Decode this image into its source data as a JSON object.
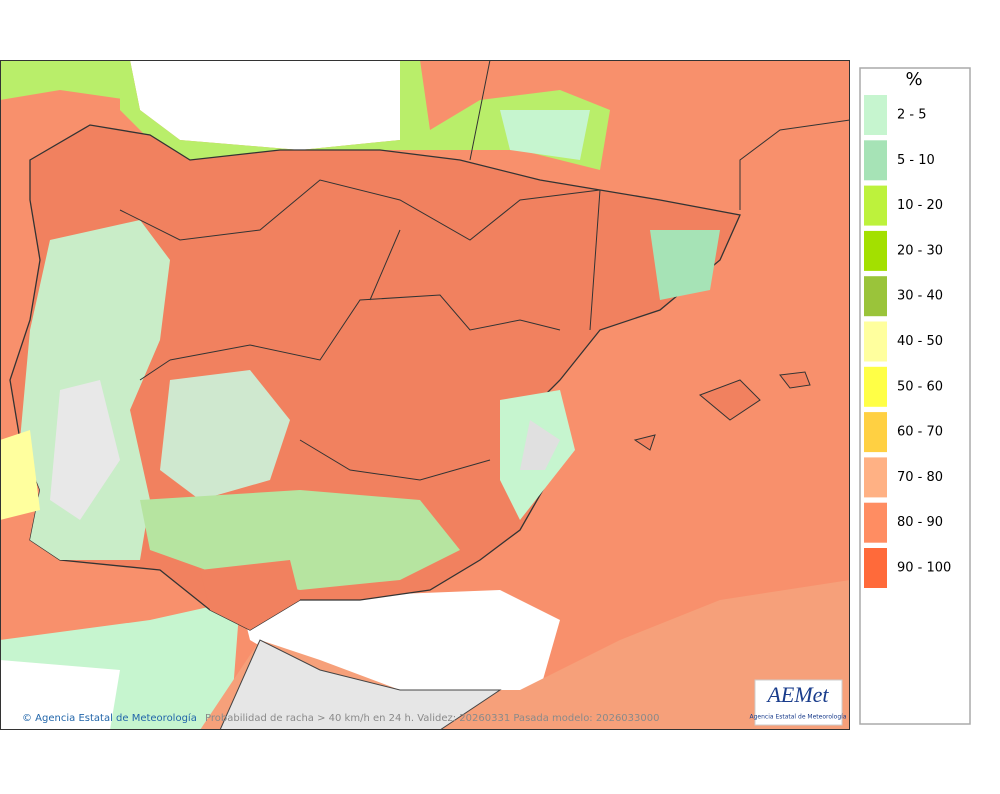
{
  "map": {
    "footer": {
      "credit": "© Agencia Estatal de Meteorología",
      "caption": "Probabilidad de racha > 40 km/h en 24 h. Validez: 20260331 Pasada modelo: 2026033000"
    },
    "logo": {
      "name": "AEMet",
      "subtitle": "Agencia Estatal de Meteorología"
    },
    "legend": {
      "title": "%",
      "items": [
        {
          "label": "2 - 5",
          "color": "#c6f5cf"
        },
        {
          "label": "5 - 10",
          "color": "#a6e3b6"
        },
        {
          "label": "10 - 20",
          "color": "#bdf23c"
        },
        {
          "label": "20 - 30",
          "color": "#a3e000"
        },
        {
          "label": "30 - 40",
          "color": "#9ac43a"
        },
        {
          "label": "40 - 50",
          "color": "#ffff9e"
        },
        {
          "label": "50 - 60",
          "color": "#ffff46"
        },
        {
          "label": "60 - 70",
          "color": "#ffd042"
        },
        {
          "label": "70 - 80",
          "color": "#ffb184"
        },
        {
          "label": "80 - 90",
          "color": "#ff8d62"
        },
        {
          "label": "90 - 100",
          "color": "#ff6a3a"
        }
      ]
    }
  }
}
